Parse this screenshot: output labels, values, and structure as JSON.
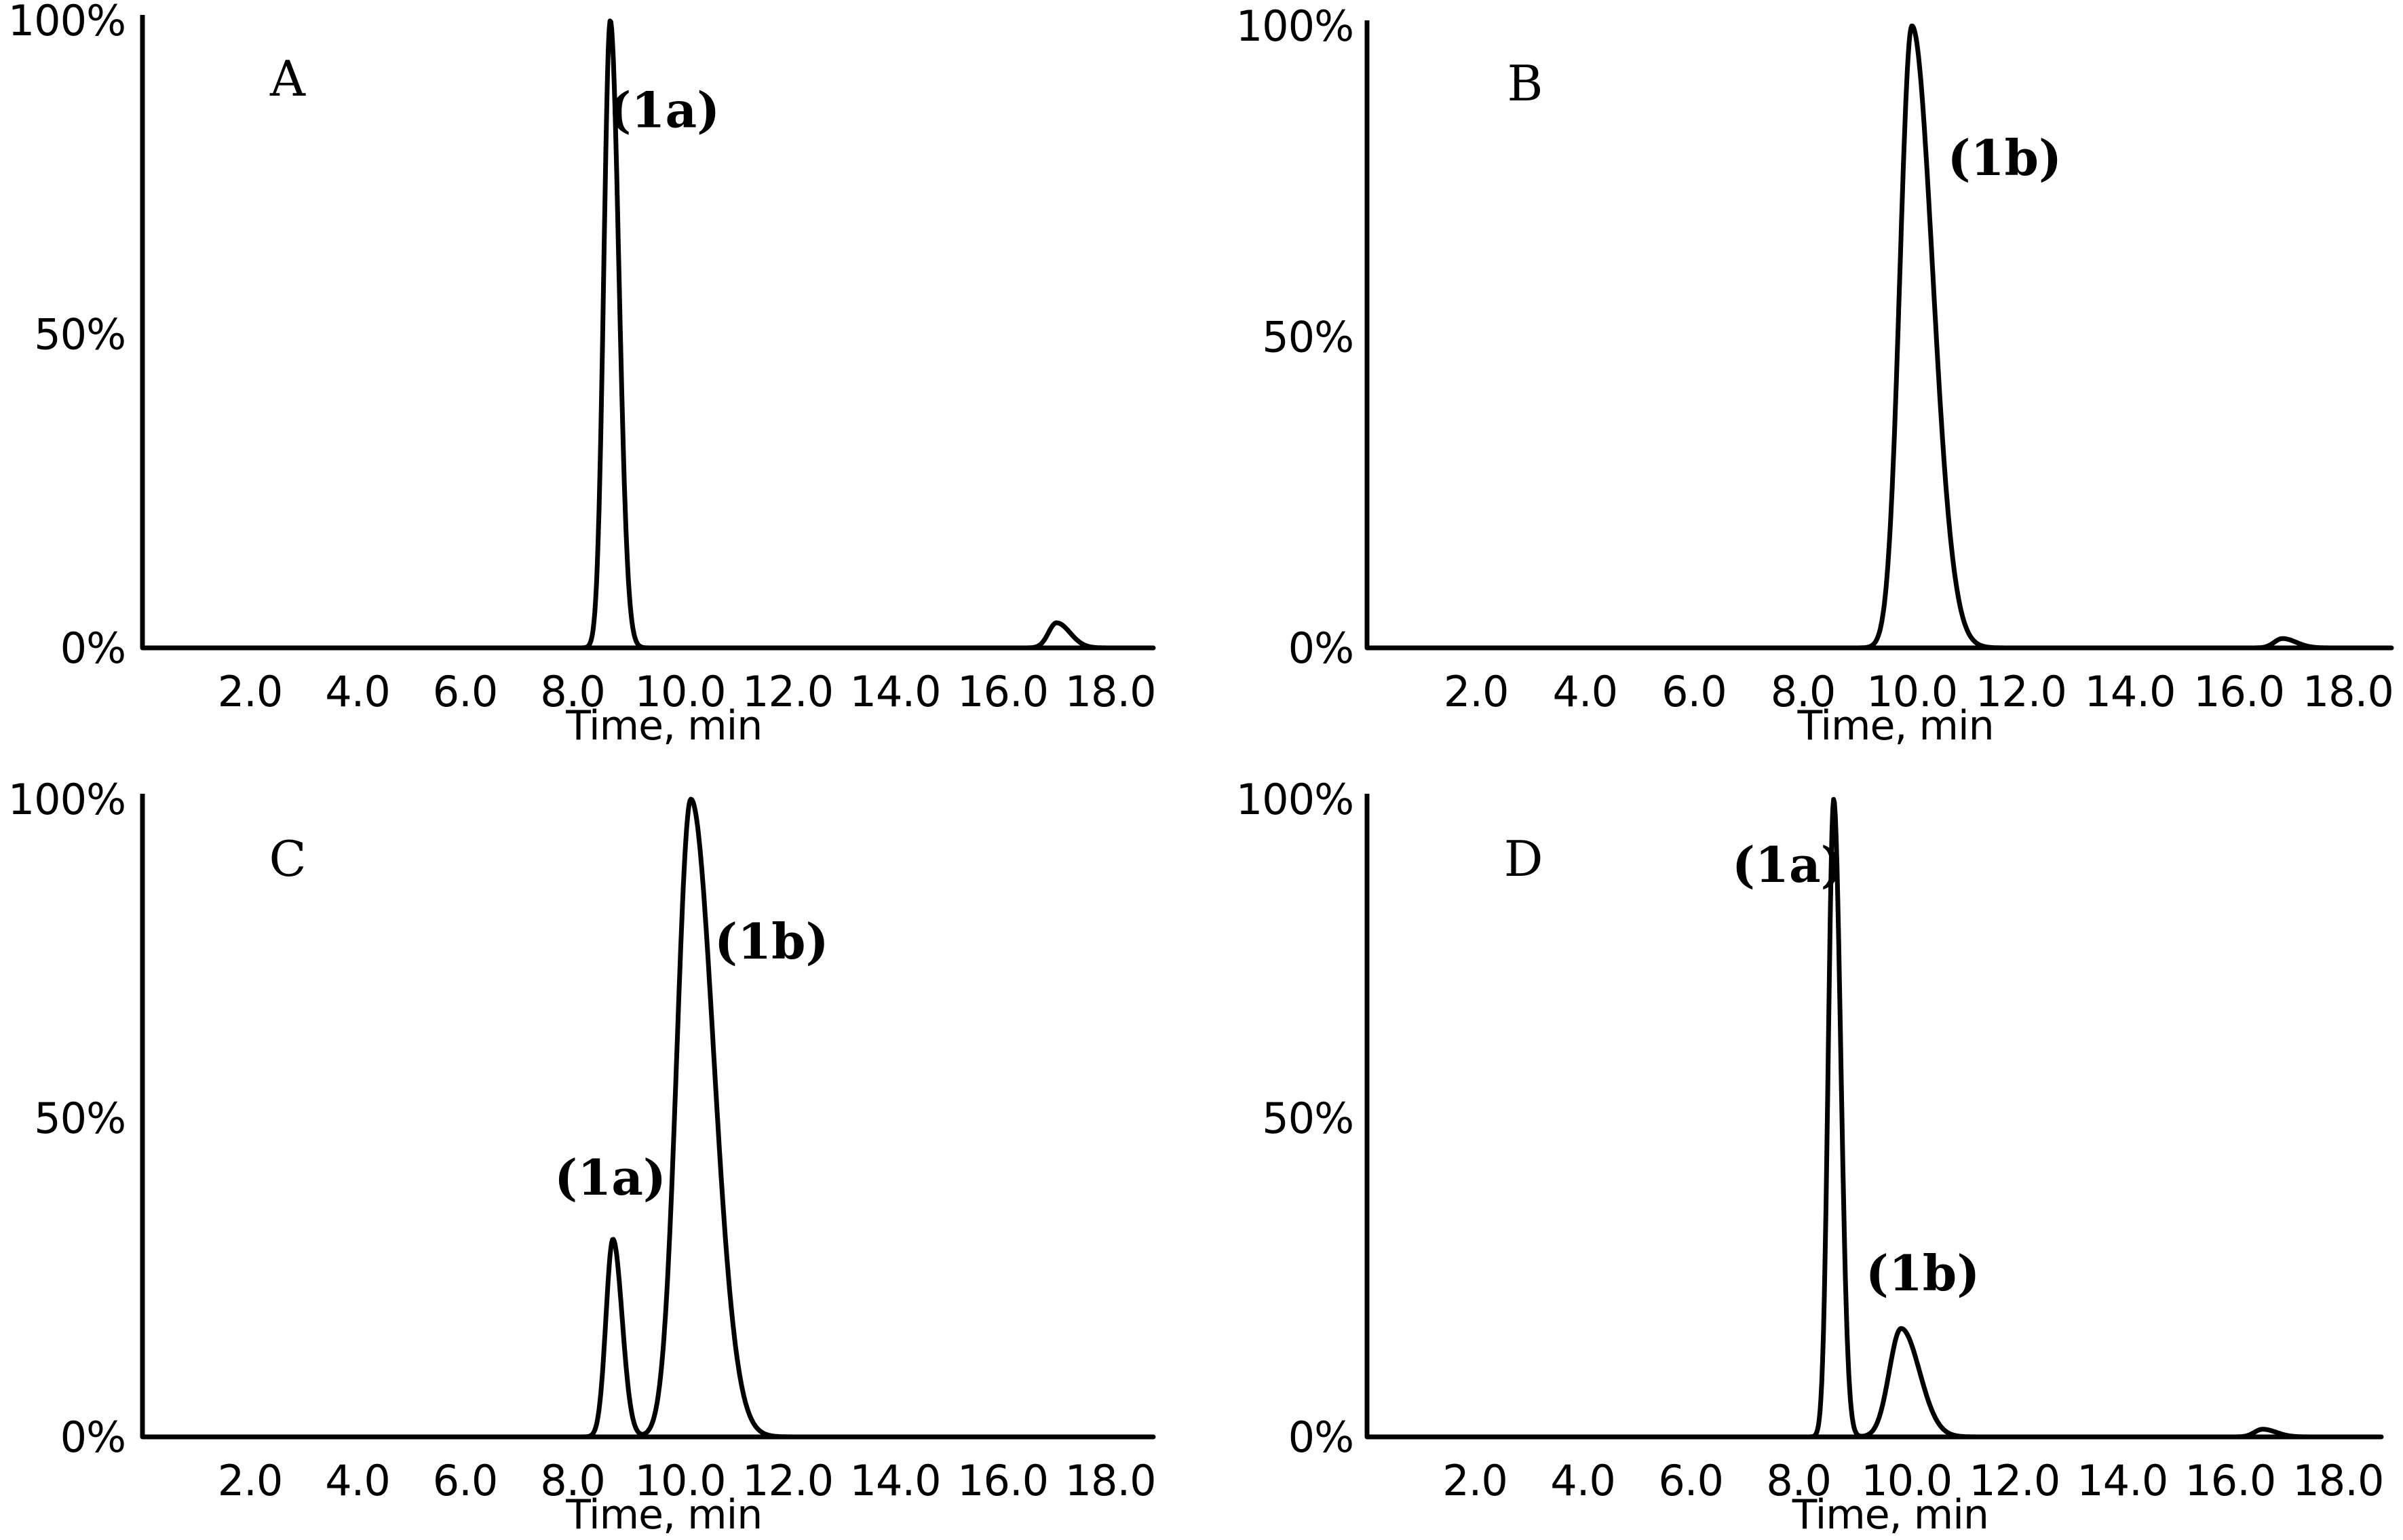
{
  "chart_data": [
    {
      "type": "line",
      "panel": "A",
      "xlabel": "Time, min",
      "ylabel": "",
      "xlim": [
        0,
        18.8
      ],
      "ylim": [
        0,
        100
      ],
      "x_ticks": [
        "2.0",
        "4.0",
        "6.0",
        "8.0",
        "10.0",
        "12.0",
        "14.0",
        "16.0",
        "18.0"
      ],
      "y_ticks": [
        "100%",
        "50%",
        "0%"
      ],
      "peaks": [
        {
          "label": "(1a)",
          "rt": 8.7,
          "height": 100,
          "sigma_left": 0.12,
          "sigma_right": 0.16
        },
        {
          "label": "",
          "rt": 17.0,
          "height": 4,
          "sigma_left": 0.15,
          "sigma_right": 0.25
        }
      ],
      "annotations": [
        {
          "text": "(1a)",
          "x": 9.7,
          "y": 83
        }
      ],
      "panel_label_pos": {
        "x": 2.7,
        "y": 88
      }
    },
    {
      "type": "line",
      "panel": "B",
      "xlabel": "Time, min",
      "ylabel": "",
      "xlim": [
        0,
        18.8
      ],
      "ylim": [
        0,
        100
      ],
      "x_ticks": [
        "2.0",
        "4.0",
        "6.0",
        "8.0",
        "10.0",
        "12.0",
        "14.0",
        "16.0",
        "18.0"
      ],
      "y_ticks": [
        "100%",
        "50%",
        "0%"
      ],
      "peaks": [
        {
          "label": "(1b)",
          "rt": 10.0,
          "height": 100,
          "sigma_left": 0.22,
          "sigma_right": 0.38
        },
        {
          "label": "",
          "rt": 16.8,
          "height": 1.5,
          "sigma_left": 0.15,
          "sigma_right": 0.25
        }
      ],
      "annotations": [
        {
          "text": "(1b)",
          "x": 11.7,
          "y": 76
        }
      ],
      "panel_label_pos": {
        "x": 2.9,
        "y": 88
      }
    },
    {
      "type": "line",
      "panel": "C",
      "xlabel": "Time, min",
      "ylabel": "",
      "xlim": [
        0,
        18.8
      ],
      "ylim": [
        0,
        100
      ],
      "x_ticks": [
        "2.0",
        "4.0",
        "6.0",
        "8.0",
        "10.0",
        "12.0",
        "14.0",
        "16.0",
        "18.0"
      ],
      "y_ticks": [
        "100%",
        "50%",
        "0%"
      ],
      "peaks": [
        {
          "label": "(1a)",
          "rt": 8.75,
          "height": 31,
          "sigma_left": 0.13,
          "sigma_right": 0.17
        },
        {
          "label": "(1b)",
          "rt": 10.2,
          "height": 100,
          "sigma_left": 0.26,
          "sigma_right": 0.42
        }
      ],
      "annotations": [
        {
          "text": "(1a)",
          "x": 8.7,
          "y": 38
        },
        {
          "text": "(1b)",
          "x": 11.7,
          "y": 75
        }
      ],
      "panel_label_pos": {
        "x": 2.7,
        "y": 88
      }
    },
    {
      "type": "line",
      "panel": "D",
      "xlabel": "Time, min",
      "ylabel": "",
      "xlim": [
        0,
        18.8
      ],
      "ylim": [
        0,
        100
      ],
      "x_ticks": [
        "2.0",
        "4.0",
        "6.0",
        "8.0",
        "10.0",
        "12.0",
        "14.0",
        "16.0",
        "18.0"
      ],
      "y_ticks": [
        "100%",
        "50%",
        "0%"
      ],
      "peaks": [
        {
          "label": "(1a)",
          "rt": 8.65,
          "height": 100,
          "sigma_left": 0.1,
          "sigma_right": 0.13
        },
        {
          "label": "(1b)",
          "rt": 9.9,
          "height": 17,
          "sigma_left": 0.22,
          "sigma_right": 0.34
        },
        {
          "label": "",
          "rt": 16.6,
          "height": 1.2,
          "sigma_left": 0.15,
          "sigma_right": 0.25
        }
      ],
      "annotations": [
        {
          "text": "(1a)",
          "x": 7.8,
          "y": 87
        },
        {
          "text": "(1b)",
          "x": 10.3,
          "y": 23
        }
      ],
      "panel_label_pos": {
        "x": 2.9,
        "y": 88
      }
    }
  ]
}
